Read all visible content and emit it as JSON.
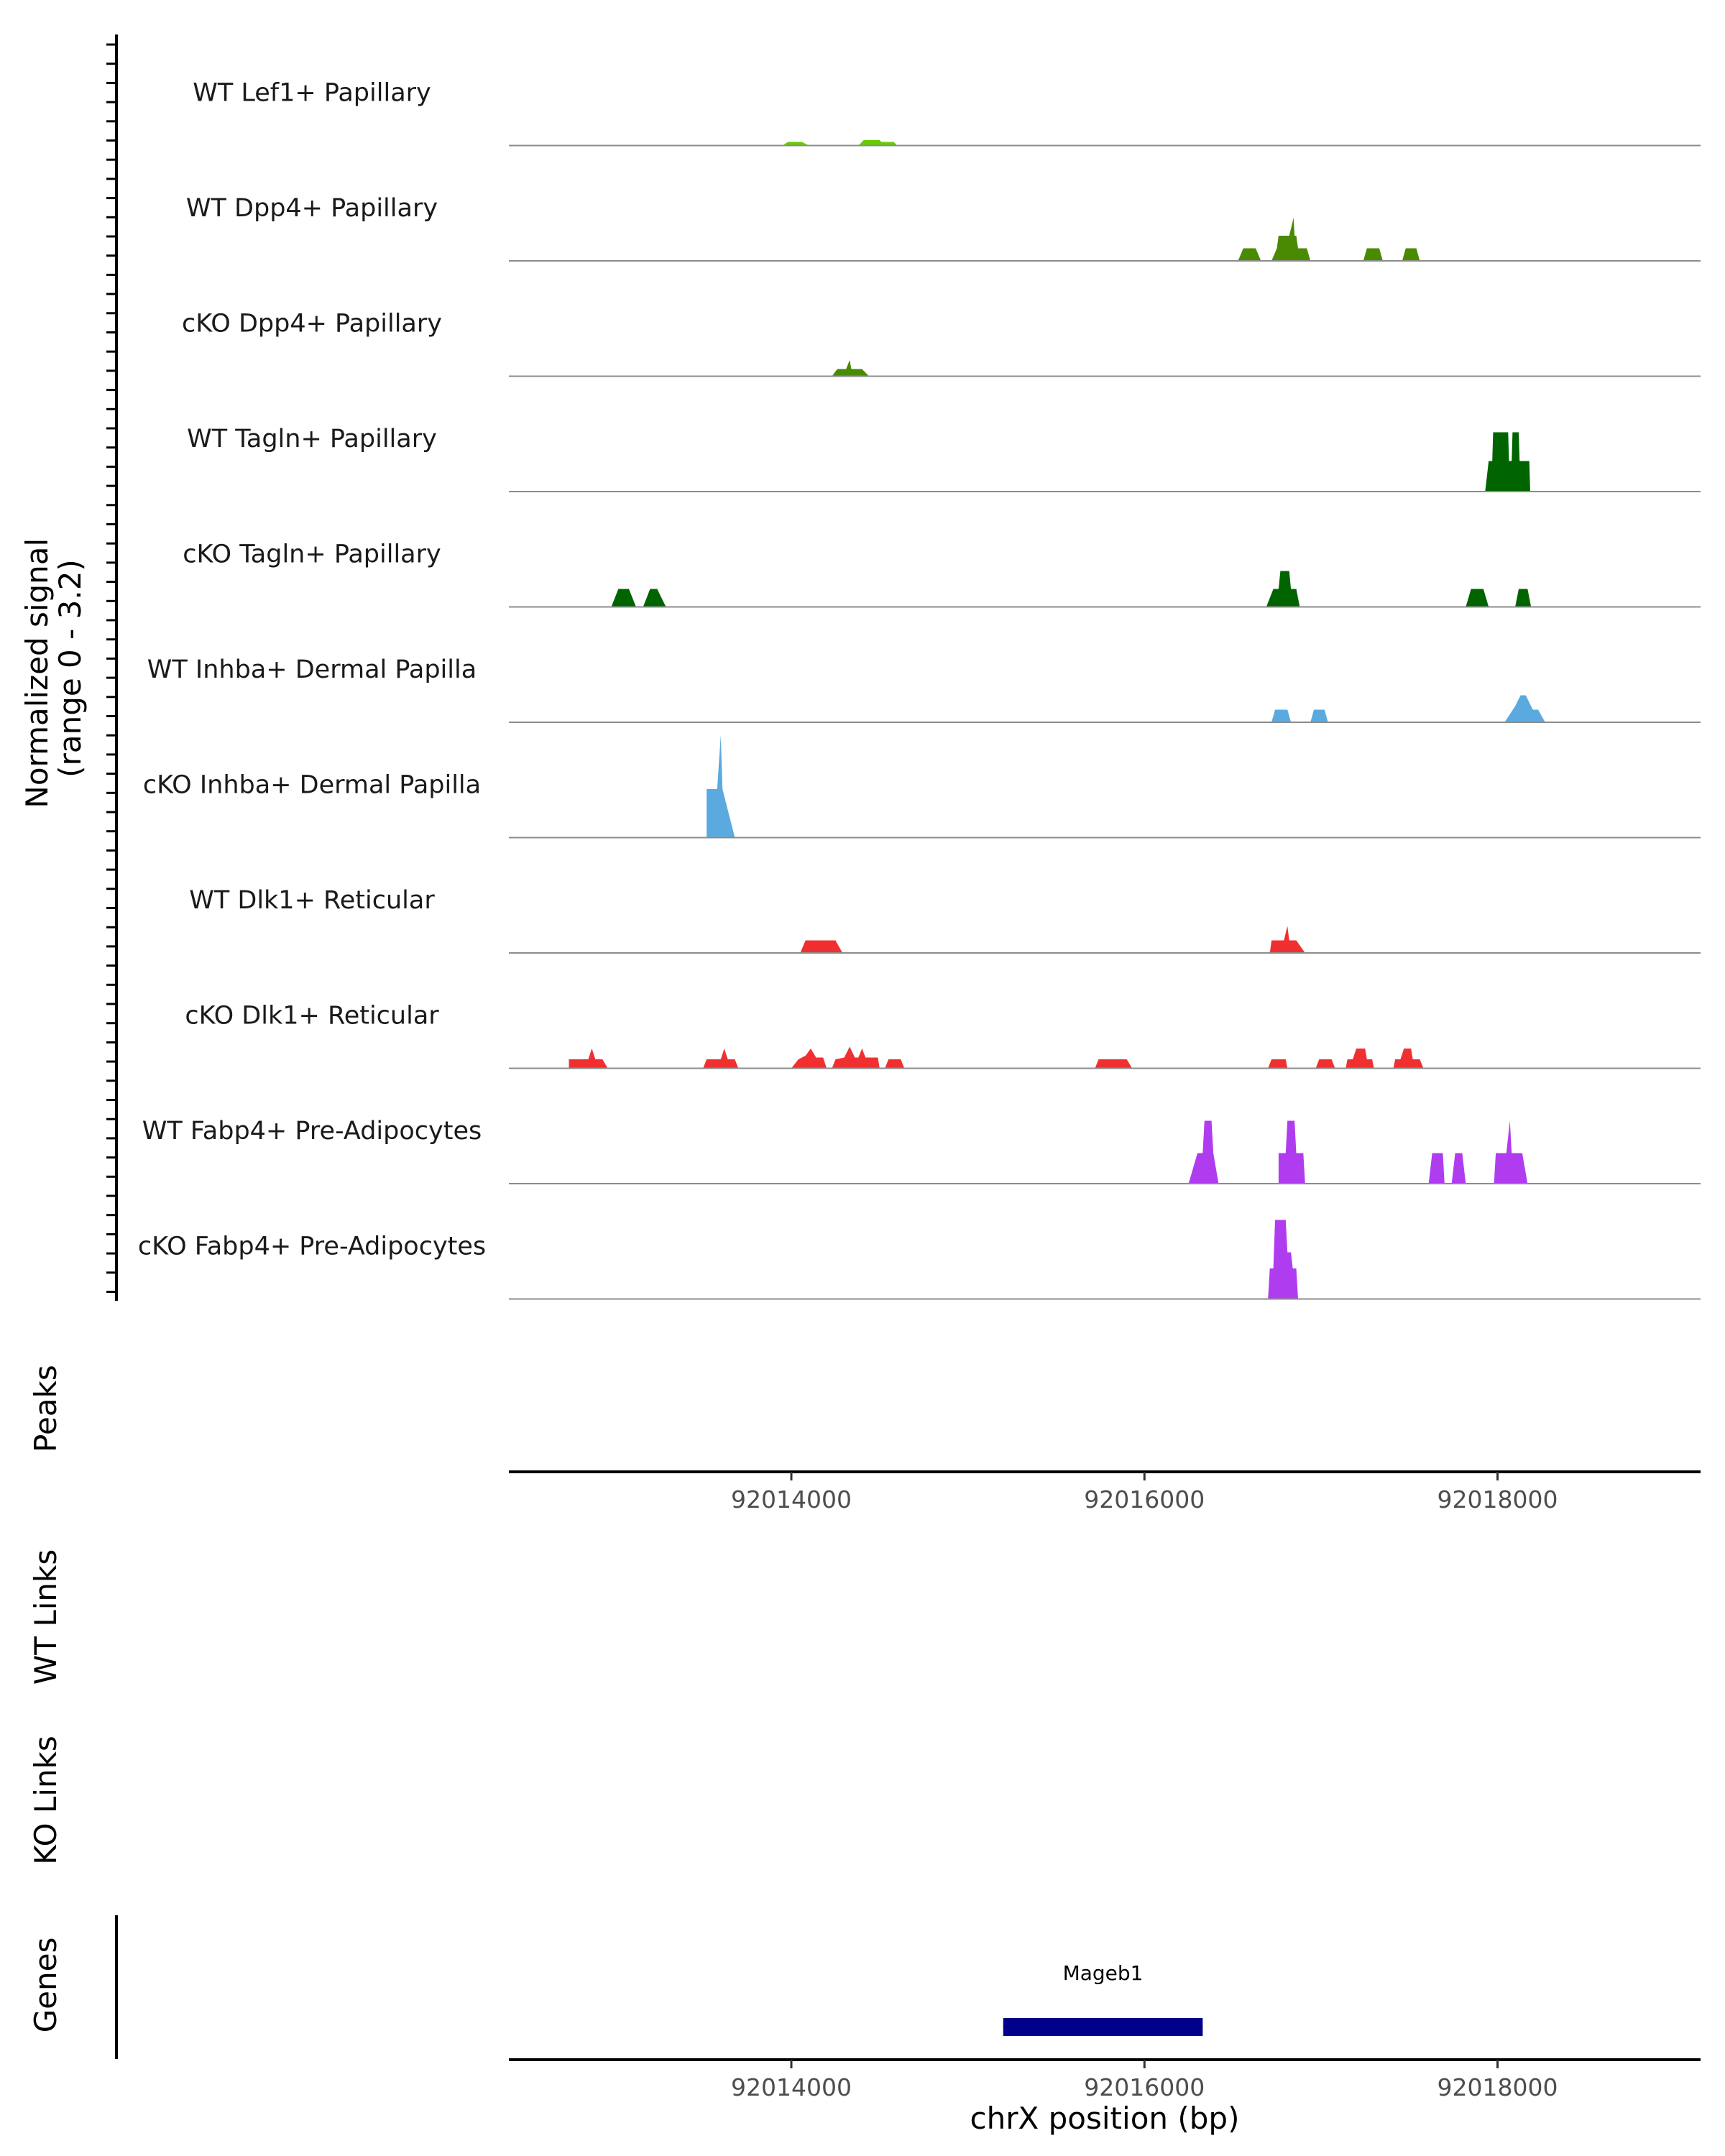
{
  "chart_data": {
    "type": "area",
    "title": "",
    "ylabel": "Normalized signal\n(range 0 - 3.2)",
    "xlabel": "chrX position (bp)",
    "ylim": [
      0,
      3.2
    ],
    "xlim": [
      92012400,
      92019150
    ],
    "x_ticks": [
      92014000,
      92016000,
      92018000
    ],
    "x_tick_labels": [
      "92014000",
      "92016000",
      "92018000"
    ],
    "section_labels": {
      "peaks": "Peaks",
      "wt_links": "WT Links",
      "ko_links": "KO Links",
      "genes": "Genes"
    },
    "series": [
      {
        "name": "WT Lef1+ Papillary",
        "color": "#66cc00",
        "points": [
          [
            92013950,
            0
          ],
          [
            92013980,
            0.1
          ],
          [
            92014060,
            0.1
          ],
          [
            92014100,
            0
          ],
          [
            92014380,
            0
          ],
          [
            92014410,
            0.15
          ],
          [
            92014500,
            0.15
          ],
          [
            92014510,
            0.1
          ],
          [
            92014580,
            0.1
          ],
          [
            92014600,
            0
          ]
        ]
      },
      {
        "name": "WT Dpp4+ Papillary",
        "color": "#4a8a00",
        "points": [
          [
            92016530,
            0
          ],
          [
            92016560,
            0.35
          ],
          [
            92016630,
            0.35
          ],
          [
            92016660,
            0
          ],
          [
            92016720,
            0
          ],
          [
            92016750,
            0.35
          ],
          [
            92016760,
            0.7
          ],
          [
            92016820,
            0.7
          ],
          [
            92016845,
            1.2
          ],
          [
            92016850,
            0.7
          ],
          [
            92016860,
            0.7
          ],
          [
            92016870,
            0.35
          ],
          [
            92016920,
            0.35
          ],
          [
            92016940,
            0
          ],
          [
            92017240,
            0
          ],
          [
            92017260,
            0.35
          ],
          [
            92017330,
            0.35
          ],
          [
            92017350,
            0
          ],
          [
            92017460,
            0
          ],
          [
            92017480,
            0.35
          ],
          [
            92017540,
            0.35
          ],
          [
            92017560,
            0
          ]
        ]
      },
      {
        "name": "cKO Dpp4+ Papillary",
        "color": "#4a8a00",
        "points": [
          [
            92014230,
            0
          ],
          [
            92014260,
            0.2
          ],
          [
            92014310,
            0.2
          ],
          [
            92014330,
            0.45
          ],
          [
            92014340,
            0.2
          ],
          [
            92014400,
            0.2
          ],
          [
            92014440,
            0
          ]
        ]
      },
      {
        "name": "WT Tagln+ Papillary",
        "color": "#006400",
        "points": [
          [
            92017930,
            0
          ],
          [
            92017950,
            0.85
          ],
          [
            92017970,
            0.85
          ],
          [
            92017975,
            1.65
          ],
          [
            92018060,
            1.65
          ],
          [
            92018065,
            0.85
          ],
          [
            92018080,
            0.85
          ],
          [
            92018085,
            1.65
          ],
          [
            92018120,
            1.65
          ],
          [
            92018125,
            0.85
          ],
          [
            92018180,
            0.85
          ],
          [
            92018185,
            0
          ]
        ]
      },
      {
        "name": "cKO Tagln+ Papillary",
        "color": "#006400",
        "points": [
          [
            92012980,
            0
          ],
          [
            92013020,
            0.5
          ],
          [
            92013080,
            0.5
          ],
          [
            92013120,
            0
          ],
          [
            92013160,
            0
          ],
          [
            92013200,
            0.5
          ],
          [
            92013240,
            0.5
          ],
          [
            92013290,
            0
          ],
          [
            92016690,
            0
          ],
          [
            92016730,
            0.5
          ],
          [
            92016760,
            0.5
          ],
          [
            92016770,
            1.0
          ],
          [
            92016820,
            1.0
          ],
          [
            92016830,
            0.5
          ],
          [
            92016860,
            0.5
          ],
          [
            92016880,
            0
          ],
          [
            92017820,
            0
          ],
          [
            92017850,
            0.5
          ],
          [
            92017920,
            0.5
          ],
          [
            92017950,
            0
          ],
          [
            92018100,
            0
          ],
          [
            92018120,
            0.5
          ],
          [
            92018170,
            0.5
          ],
          [
            92018190,
            0
          ]
        ]
      },
      {
        "name": "WT Inhba+ Dermal Papilla",
        "color": "#5aaae0",
        "points": [
          [
            92016720,
            0
          ],
          [
            92016740,
            0.35
          ],
          [
            92016810,
            0.35
          ],
          [
            92016830,
            0
          ],
          [
            92016940,
            0
          ],
          [
            92016960,
            0.35
          ],
          [
            92017020,
            0.35
          ],
          [
            92017040,
            0
          ],
          [
            92018040,
            0
          ],
          [
            92018080,
            0.3
          ],
          [
            92018100,
            0.45
          ],
          [
            92018130,
            0.75
          ],
          [
            92018160,
            0.75
          ],
          [
            92018200,
            0.35
          ],
          [
            92018230,
            0.35
          ],
          [
            92018270,
            0
          ]
        ]
      },
      {
        "name": "cKO Inhba+ Dermal Papilla",
        "color": "#5aaae0",
        "points": [
          [
            92013520,
            0
          ],
          [
            92013520,
            1.35
          ],
          [
            92013580,
            1.35
          ],
          [
            92013600,
            2.85
          ],
          [
            92013610,
            1.35
          ],
          [
            92013680,
            0
          ]
        ]
      },
      {
        "name": "WT Dlk1+ Reticular",
        "color": "#f03030",
        "points": [
          [
            92014050,
            0
          ],
          [
            92014080,
            0.35
          ],
          [
            92014250,
            0.35
          ],
          [
            92014290,
            0
          ],
          [
            92016710,
            0
          ],
          [
            92016720,
            0.35
          ],
          [
            92016790,
            0.35
          ],
          [
            92016810,
            0.75
          ],
          [
            92016820,
            0.35
          ],
          [
            92016860,
            0.35
          ],
          [
            92016910,
            0
          ]
        ]
      },
      {
        "name": "cKO Dlk1+ Reticular",
        "color": "#f03030",
        "points": [
          [
            92012740,
            0
          ],
          [
            92012740,
            0.25
          ],
          [
            92012850,
            0.25
          ],
          [
            92012870,
            0.55
          ],
          [
            92012890,
            0.25
          ],
          [
            92012930,
            0.25
          ],
          [
            92012960,
            0
          ],
          [
            92013500,
            0
          ],
          [
            92013520,
            0.25
          ],
          [
            92013600,
            0.25
          ],
          [
            92013620,
            0.55
          ],
          [
            92013640,
            0.25
          ],
          [
            92013680,
            0.25
          ],
          [
            92013700,
            0
          ],
          [
            92014000,
            0
          ],
          [
            92014040,
            0.25
          ],
          [
            92014080,
            0.35
          ],
          [
            92014110,
            0.55
          ],
          [
            92014140,
            0.3
          ],
          [
            92014180,
            0.3
          ],
          [
            92014200,
            0
          ],
          [
            92014230,
            0
          ],
          [
            92014250,
            0.25
          ],
          [
            92014300,
            0.3
          ],
          [
            92014330,
            0.6
          ],
          [
            92014360,
            0.3
          ],
          [
            92014380,
            0.3
          ],
          [
            92014400,
            0.55
          ],
          [
            92014420,
            0.3
          ],
          [
            92014490,
            0.3
          ],
          [
            92014500,
            0
          ],
          [
            92014530,
            0
          ],
          [
            92014550,
            0.25
          ],
          [
            92014620,
            0.25
          ],
          [
            92014640,
            0
          ],
          [
            92015720,
            0
          ],
          [
            92015740,
            0.25
          ],
          [
            92015900,
            0.25
          ],
          [
            92015930,
            0
          ],
          [
            92016700,
            0
          ],
          [
            92016720,
            0.25
          ],
          [
            92016800,
            0.25
          ],
          [
            92016810,
            0
          ],
          [
            92016970,
            0
          ],
          [
            92016990,
            0.25
          ],
          [
            92017060,
            0.25
          ],
          [
            92017080,
            0
          ],
          [
            92017140,
            0
          ],
          [
            92017150,
            0.25
          ],
          [
            92017180,
            0.25
          ],
          [
            92017200,
            0.55
          ],
          [
            92017250,
            0.55
          ],
          [
            92017260,
            0.25
          ],
          [
            92017290,
            0.25
          ],
          [
            92017300,
            0
          ],
          [
            92017410,
            0
          ],
          [
            92017420,
            0.25
          ],
          [
            92017450,
            0.25
          ],
          [
            92017470,
            0.55
          ],
          [
            92017510,
            0.55
          ],
          [
            92017520,
            0.25
          ],
          [
            92017560,
            0.25
          ],
          [
            92017580,
            0
          ]
        ]
      },
      {
        "name": "WT Fabp4+ Pre-Adipocytes",
        "color": "#b03cf0",
        "points": [
          [
            92016250,
            0
          ],
          [
            92016300,
            0.85
          ],
          [
            92016330,
            0.85
          ],
          [
            92016340,
            1.75
          ],
          [
            92016380,
            1.75
          ],
          [
            92016390,
            0.85
          ],
          [
            92016420,
            0
          ],
          [
            92016760,
            0
          ],
          [
            92016760,
            0.85
          ],
          [
            92016800,
            0.85
          ],
          [
            92016810,
            1.75
          ],
          [
            92016850,
            1.75
          ],
          [
            92016860,
            0.85
          ],
          [
            92016900,
            0.85
          ],
          [
            92016910,
            0
          ],
          [
            92017610,
            0
          ],
          [
            92017630,
            0.85
          ],
          [
            92017690,
            0.85
          ],
          [
            92017700,
            0
          ],
          [
            92017740,
            0
          ],
          [
            92017760,
            0.85
          ],
          [
            92017800,
            0.85
          ],
          [
            92017820,
            0
          ],
          [
            92017980,
            0
          ],
          [
            92017990,
            0.85
          ],
          [
            92018050,
            0.85
          ],
          [
            92018070,
            1.75
          ],
          [
            92018080,
            0.85
          ],
          [
            92018140,
            0.85
          ],
          [
            92018170,
            0
          ]
        ]
      },
      {
        "name": "cKO Fabp4+ Pre-Adipocytes",
        "color": "#b03cf0",
        "points": [
          [
            92016700,
            0
          ],
          [
            92016710,
            0.85
          ],
          [
            92016730,
            0.85
          ],
          [
            92016740,
            2.2
          ],
          [
            92016800,
            2.2
          ],
          [
            92016810,
            1.3
          ],
          [
            92016830,
            1.3
          ],
          [
            92016840,
            0.85
          ],
          [
            92016860,
            0.85
          ],
          [
            92016870,
            0
          ]
        ]
      }
    ],
    "genes": [
      {
        "name": "Mageb1",
        "start": 92015200,
        "end": 92016330,
        "color": "#00008b"
      }
    ]
  }
}
